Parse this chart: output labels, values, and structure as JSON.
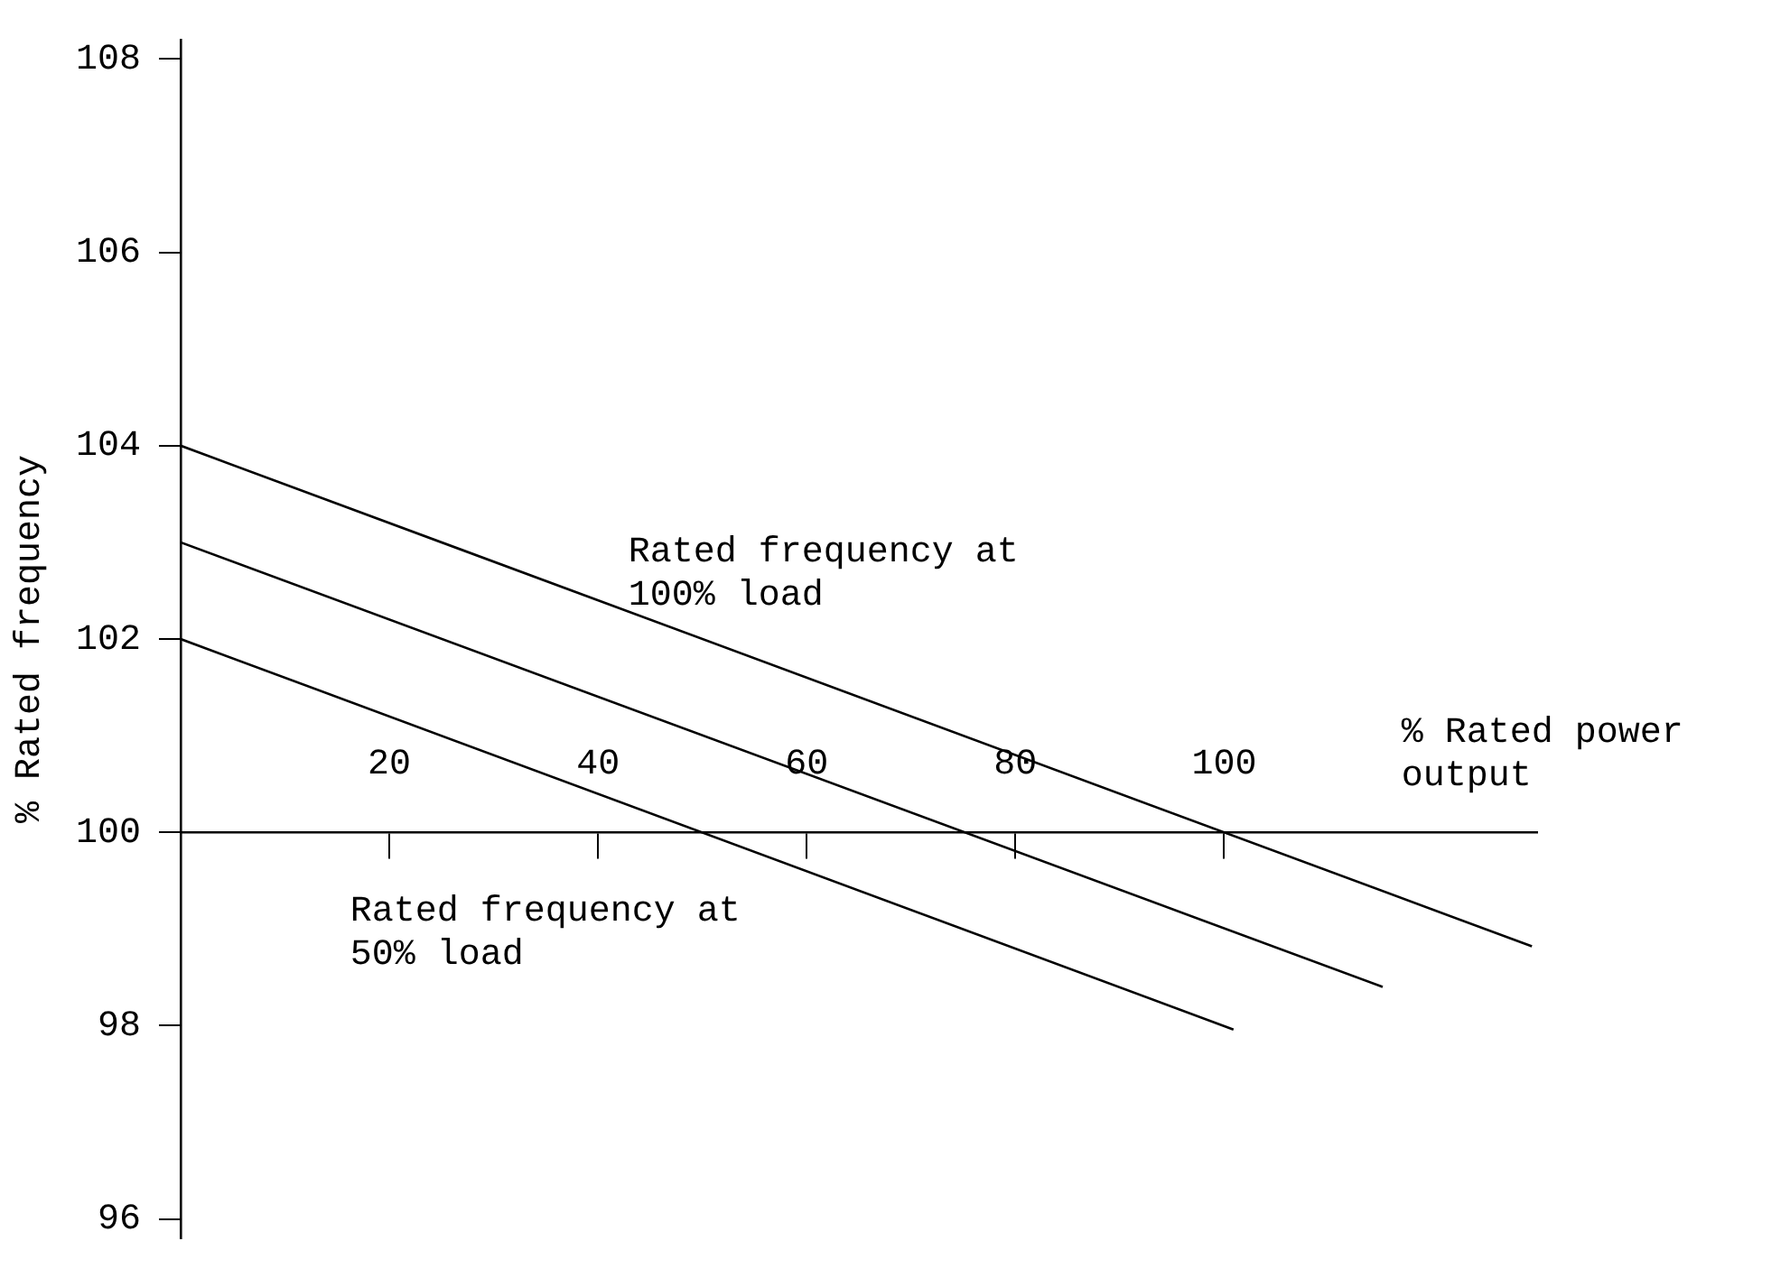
{
  "chart_data": {
    "type": "line",
    "xlabel": "% Rated power output",
    "ylabel": "% Rated frequency",
    "xlim": [
      0,
      130
    ],
    "ylim": [
      95.8,
      108.2
    ],
    "xticks": [
      20,
      40,
      60,
      80,
      100
    ],
    "yticks": [
      96,
      98,
      100,
      102,
      104,
      106,
      108
    ],
    "grid": false,
    "legend": false,
    "marker": "none",
    "line_style": "solid",
    "series": [
      {
        "color": "#000000",
        "x": [
          0,
          129.5
        ],
        "values": [
          104,
          98.82
        ]
      },
      {
        "color": "#000000",
        "x": [
          0,
          115.2
        ],
        "values": [
          103,
          98.4
        ]
      },
      {
        "color": "#000000",
        "x": [
          0,
          100.9
        ],
        "values": [
          102,
          97.96
        ]
      }
    ],
    "annotations": [
      "Rated frequency at 100% load",
      "Rated frequency at 50% load"
    ]
  }
}
